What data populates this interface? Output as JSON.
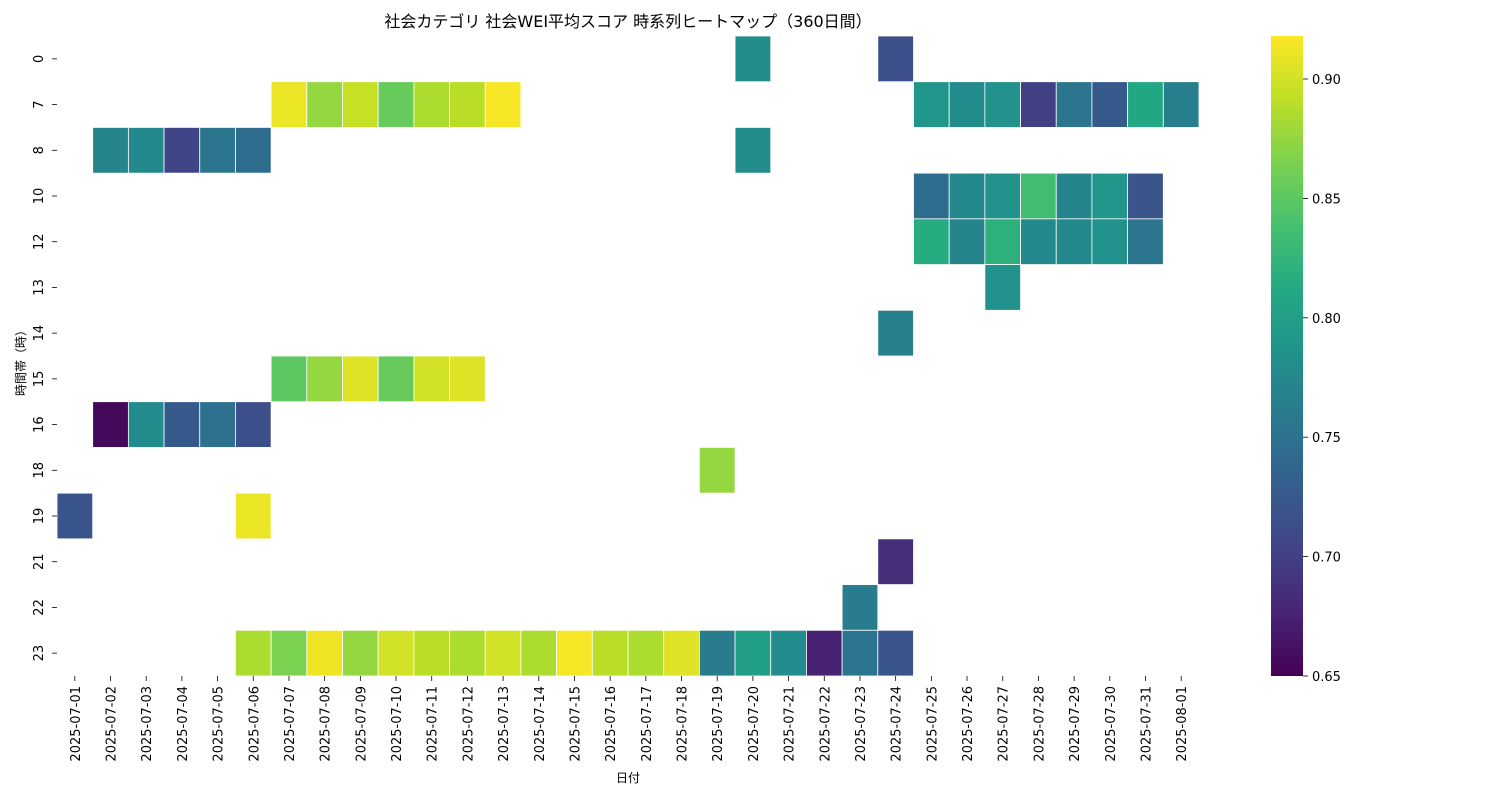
{
  "chart_data": {
    "type": "heatmap",
    "title": "社会カテゴリ 社会WEI平均スコア 時系列ヒートマップ（360日間）",
    "xlabel": "日付",
    "ylabel": "時間帯（時）",
    "colormap": "viridis",
    "colorbar": {
      "min": 0.65,
      "max": 0.918,
      "ticks": [
        "0.65",
        "0.70",
        "0.75",
        "0.80",
        "0.85",
        "0.90"
      ]
    },
    "x": [
      "2025-07-01",
      "2025-07-02",
      "2025-07-03",
      "2025-07-04",
      "2025-07-05",
      "2025-07-06",
      "2025-07-07",
      "2025-07-08",
      "2025-07-09",
      "2025-07-10",
      "2025-07-11",
      "2025-07-12",
      "2025-07-13",
      "2025-07-14",
      "2025-07-15",
      "2025-07-16",
      "2025-07-17",
      "2025-07-18",
      "2025-07-19",
      "2025-07-20",
      "2025-07-21",
      "2025-07-22",
      "2025-07-23",
      "2025-07-24",
      "2025-07-25",
      "2025-07-26",
      "2025-07-27",
      "2025-07-28",
      "2025-07-29",
      "2025-07-30",
      "2025-07-31",
      "2025-08-01"
    ],
    "y": [
      "0",
      "7",
      "8",
      "10",
      "12",
      "13",
      "14",
      "15",
      "16",
      "18",
      "19",
      "21",
      "22",
      "23"
    ],
    "values": [
      [
        null,
        null,
        null,
        null,
        null,
        null,
        null,
        null,
        null,
        null,
        null,
        null,
        null,
        null,
        null,
        null,
        null,
        null,
        null,
        0.78,
        null,
        null,
        null,
        0.715,
        null,
        null,
        null,
        null,
        null,
        null,
        null,
        null
      ],
      [
        null,
        null,
        null,
        null,
        null,
        null,
        0.91,
        0.875,
        0.895,
        0.855,
        0.885,
        0.89,
        0.915,
        null,
        null,
        null,
        null,
        null,
        null,
        null,
        null,
        null,
        null,
        null,
        0.79,
        0.78,
        0.785,
        0.7,
        0.755,
        0.725,
        0.81,
        0.765
      ],
      [
        null,
        0.77,
        0.775,
        0.705,
        0.755,
        0.745,
        null,
        null,
        null,
        null,
        null,
        null,
        null,
        null,
        null,
        null,
        null,
        null,
        null,
        0.78,
        null,
        null,
        null,
        null,
        null,
        null,
        null,
        null,
        null,
        null,
        null,
        null
      ],
      [
        null,
        null,
        null,
        null,
        null,
        null,
        null,
        null,
        null,
        null,
        null,
        null,
        null,
        null,
        null,
        null,
        null,
        null,
        null,
        null,
        null,
        null,
        null,
        null,
        0.745,
        0.775,
        0.785,
        0.835,
        0.77,
        0.79,
        0.72,
        null
      ],
      [
        null,
        null,
        null,
        null,
        null,
        null,
        null,
        null,
        null,
        null,
        null,
        null,
        null,
        null,
        null,
        null,
        null,
        null,
        null,
        null,
        null,
        null,
        null,
        null,
        0.815,
        0.77,
        0.82,
        0.775,
        0.775,
        0.785,
        0.755,
        null
      ],
      [
        null,
        null,
        null,
        null,
        null,
        null,
        null,
        null,
        null,
        null,
        null,
        null,
        null,
        null,
        null,
        null,
        null,
        null,
        null,
        null,
        null,
        null,
        null,
        null,
        null,
        null,
        0.785,
        null,
        null,
        null,
        null,
        null
      ],
      [
        null,
        null,
        null,
        null,
        null,
        null,
        null,
        null,
        null,
        null,
        null,
        null,
        null,
        null,
        null,
        null,
        null,
        null,
        null,
        null,
        null,
        null,
        null,
        0.765,
        null,
        null,
        null,
        null,
        null,
        null,
        null,
        null
      ],
      [
        null,
        null,
        null,
        null,
        null,
        null,
        0.85,
        0.875,
        0.905,
        0.855,
        0.9,
        0.905,
        null,
        null,
        null,
        null,
        null,
        null,
        null,
        null,
        null,
        null,
        null,
        null,
        null,
        null,
        null,
        null,
        null,
        null,
        null,
        null
      ],
      [
        null,
        0.655,
        0.78,
        0.725,
        0.75,
        0.715,
        null,
        null,
        null,
        null,
        null,
        null,
        null,
        null,
        null,
        null,
        null,
        null,
        null,
        null,
        null,
        null,
        null,
        null,
        null,
        null,
        null,
        null,
        null,
        null,
        null,
        null
      ],
      [
        null,
        null,
        null,
        null,
        null,
        null,
        null,
        null,
        null,
        null,
        null,
        null,
        null,
        null,
        null,
        null,
        null,
        null,
        0.875,
        null,
        null,
        null,
        null,
        null,
        null,
        null,
        null,
        null,
        null,
        null,
        null,
        null
      ],
      [
        0.72,
        null,
        null,
        null,
        null,
        0.91,
        null,
        null,
        null,
        null,
        null,
        null,
        null,
        null,
        null,
        null,
        null,
        null,
        null,
        null,
        null,
        null,
        null,
        null,
        null,
        null,
        null,
        null,
        null,
        null,
        null,
        null
      ],
      [
        null,
        null,
        null,
        null,
        null,
        null,
        null,
        null,
        null,
        null,
        null,
        null,
        null,
        null,
        null,
        null,
        null,
        null,
        null,
        null,
        null,
        null,
        null,
        0.685,
        null,
        null,
        null,
        null,
        null,
        null,
        null,
        null
      ],
      [
        null,
        null,
        null,
        null,
        null,
        null,
        null,
        null,
        null,
        null,
        null,
        null,
        null,
        null,
        null,
        null,
        null,
        null,
        null,
        null,
        null,
        null,
        0.76,
        null,
        null,
        null,
        null,
        null,
        null,
        null,
        null,
        null
      ],
      [
        null,
        null,
        null,
        null,
        null,
        0.885,
        0.865,
        0.912,
        0.875,
        0.9,
        0.89,
        0.885,
        0.9,
        0.885,
        0.915,
        0.89,
        0.885,
        0.905,
        0.76,
        0.8,
        0.78,
        0.675,
        0.755,
        0.72,
        null,
        null,
        null,
        null,
        null,
        null,
        null,
        null
      ]
    ]
  }
}
